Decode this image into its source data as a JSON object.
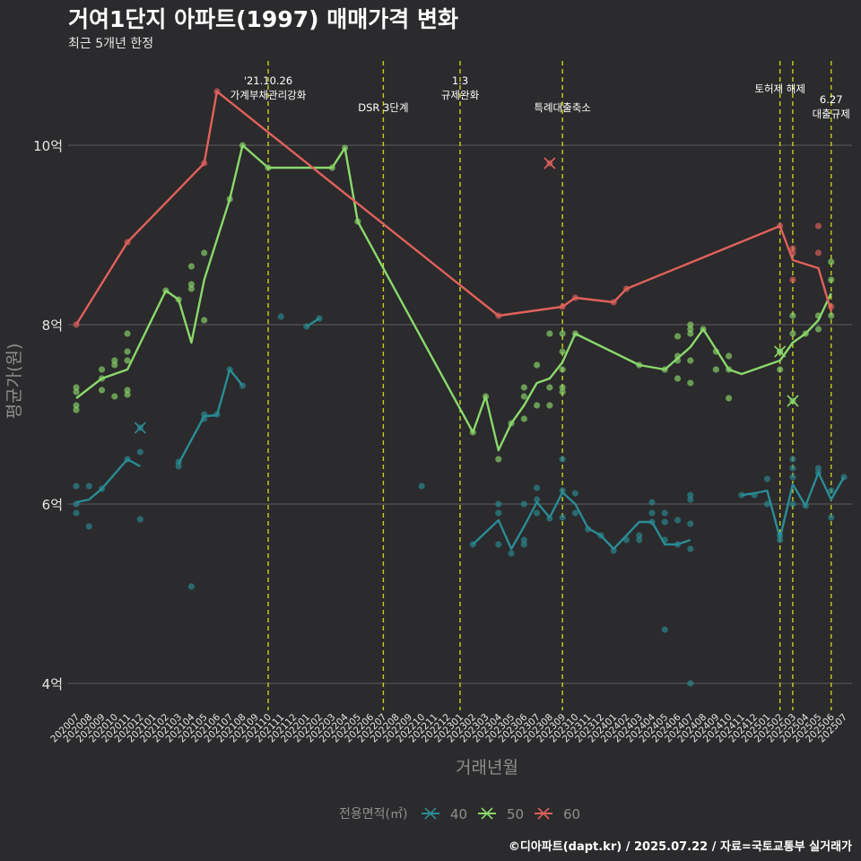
{
  "title": "거여1단지 아파트(1997) 매매가격 변화",
  "subtitle": "최근 5개년 한정",
  "caption": "©디아파트(dapt.kr) / 2025.07.22 / 자료=국토교통부 실거래가",
  "colors": {
    "background": "#2b2a2c",
    "grid": "#5e5d60",
    "vline": "#c8d21e",
    "text": "#e6e6e6",
    "axis_title": "#8f8f8f"
  },
  "chart_data": {
    "type": "line",
    "xlabel": "거래년월",
    "ylabel": "평균가(원)",
    "x_categories": [
      "202007",
      "202008",
      "202009",
      "202010",
      "202011",
      "202012",
      "202101",
      "202102",
      "202103",
      "202104",
      "202105",
      "202106",
      "202107",
      "202108",
      "202109",
      "202110",
      "202111",
      "202112",
      "202201",
      "202202",
      "202203",
      "202204",
      "202205",
      "202206",
      "202207",
      "202208",
      "202209",
      "202210",
      "202211",
      "202212",
      "202301",
      "202302",
      "202303",
      "202304",
      "202305",
      "202306",
      "202307",
      "202308",
      "202309",
      "202310",
      "202311",
      "202312",
      "202401",
      "202402",
      "202403",
      "202404",
      "202405",
      "202406",
      "202407",
      "202408",
      "202409",
      "202410",
      "202411",
      "202412",
      "202501",
      "202502",
      "202503",
      "202504",
      "202505",
      "202506",
      "202507"
    ],
    "y_ticks": [
      4,
      6,
      8,
      10
    ],
    "y_tick_labels": [
      "4억",
      "6억",
      "8억",
      "10억"
    ],
    "ylim": [
      3.7,
      11.0
    ],
    "grid": true,
    "legend": {
      "position": "bottom",
      "title": "전용면적(㎡)"
    },
    "series": [
      {
        "name": "40",
        "color": "#2a8c95",
        "line": [
          [
            "202007",
            6.02
          ],
          [
            "202008",
            6.05
          ],
          [
            "202009",
            6.17
          ],
          [
            "202011",
            6.5
          ],
          [
            "202012",
            6.42
          ],
          null,
          [
            "202103",
            6.45
          ],
          [
            "202105",
            6.98
          ],
          [
            "202106",
            6.99
          ],
          [
            "202107",
            7.5
          ],
          [
            "202108",
            7.32
          ],
          null,
          [
            "202201",
            7.98
          ],
          [
            "202202",
            8.07
          ],
          null,
          [
            "202302",
            5.55
          ],
          [
            "202304",
            5.82
          ],
          [
            "202305",
            5.5
          ],
          [
            "202306",
            5.75
          ],
          [
            "202307",
            6.02
          ],
          [
            "202308",
            5.85
          ],
          [
            "202309",
            6.13
          ],
          [
            "202310",
            6.0
          ],
          [
            "202311",
            5.73
          ],
          [
            "202312",
            5.65
          ],
          [
            "202401",
            5.5
          ],
          [
            "202402",
            5.65
          ],
          [
            "202403",
            5.8
          ],
          [
            "202404",
            5.8
          ],
          [
            "202405",
            5.55
          ],
          [
            "202406",
            5.55
          ],
          [
            "202407",
            5.6
          ],
          null,
          [
            "202411",
            6.1
          ],
          [
            "202412",
            6.12
          ],
          [
            "202501",
            6.15
          ],
          [
            "202502",
            5.62
          ],
          [
            "202503",
            6.22
          ],
          [
            "202504",
            5.98
          ],
          [
            "202505",
            6.35
          ],
          [
            "202506",
            6.05
          ],
          [
            "202507",
            6.3
          ]
        ],
        "points": [
          [
            "202007",
            5.9
          ],
          [
            "202007",
            6.0
          ],
          [
            "202007",
            6.2
          ],
          [
            "202008",
            5.75
          ],
          [
            "202008",
            6.2
          ],
          [
            "202009",
            6.17
          ],
          [
            "202011",
            6.5
          ],
          [
            "202012",
            6.58
          ],
          [
            "202012",
            5.83
          ],
          [
            "202103",
            6.42
          ],
          [
            "202103",
            6.47
          ],
          [
            "202104",
            5.08
          ],
          [
            "202105",
            6.95
          ],
          [
            "202105",
            7.0
          ],
          [
            "202106",
            7.0
          ],
          [
            "202107",
            7.5
          ],
          [
            "202108",
            7.32
          ],
          [
            "202111",
            8.09
          ],
          [
            "202201",
            7.98
          ],
          [
            "202202",
            8.07
          ],
          [
            "202210",
            6.2
          ],
          [
            "202302",
            5.55
          ],
          [
            "202304",
            5.55
          ],
          [
            "202304",
            5.9
          ],
          [
            "202304",
            6.0
          ],
          [
            "202305",
            5.45
          ],
          [
            "202306",
            5.55
          ],
          [
            "202306",
            5.6
          ],
          [
            "202306",
            6.0
          ],
          [
            "202307",
            5.9
          ],
          [
            "202307",
            6.05
          ],
          [
            "202307",
            6.18
          ],
          [
            "202308",
            5.84
          ],
          [
            "202309",
            5.85
          ],
          [
            "202309",
            6.15
          ],
          [
            "202309",
            6.5
          ],
          [
            "202310",
            5.9
          ],
          [
            "202310",
            6.12
          ],
          [
            "202311",
            5.72
          ],
          [
            "202312",
            5.65
          ],
          [
            "202401",
            5.48
          ],
          [
            "202402",
            5.6
          ],
          [
            "202403",
            5.65
          ],
          [
            "202403",
            5.6
          ],
          [
            "202404",
            5.9
          ],
          [
            "202404",
            6.02
          ],
          [
            "202404",
            5.8
          ],
          [
            "202405",
            5.6
          ],
          [
            "202405",
            5.8
          ],
          [
            "202405",
            4.6
          ],
          [
            "202405",
            5.9
          ],
          [
            "202406",
            5.55
          ],
          [
            "202406",
            5.82
          ],
          [
            "202407",
            5.5
          ],
          [
            "202407",
            5.78
          ],
          [
            "202407",
            6.05
          ],
          [
            "202407",
            6.1
          ],
          [
            "202407",
            4.0
          ],
          [
            "202411",
            6.1
          ],
          [
            "202412",
            6.1
          ],
          [
            "202501",
            6.28
          ],
          [
            "202501",
            6.0
          ],
          [
            "202502",
            5.6
          ],
          [
            "202502",
            5.65
          ],
          [
            "202503",
            6.3
          ],
          [
            "202503",
            6.4
          ],
          [
            "202503",
            6.5
          ],
          [
            "202503",
            6.0
          ],
          [
            "202504",
            5.98
          ],
          [
            "202505",
            6.4
          ],
          [
            "202505",
            6.35
          ],
          [
            "202506",
            6.15
          ],
          [
            "202506",
            5.85
          ],
          [
            "202507",
            6.3
          ]
        ],
        "cancelled": [
          [
            "202012",
            6.85
          ]
        ]
      },
      {
        "name": "50",
        "color": "#8ad96c",
        "line": [
          [
            "202007",
            7.18
          ],
          [
            "202009",
            7.4
          ],
          [
            "202011",
            7.5
          ],
          [
            "202102",
            8.38
          ],
          [
            "202103",
            8.28
          ],
          [
            "202104",
            7.8
          ],
          [
            "202105",
            8.5
          ],
          [
            "202107",
            9.4
          ],
          [
            "202108",
            10.0
          ],
          [
            "202110",
            9.75
          ],
          [
            "202203",
            9.75
          ],
          [
            "202204",
            9.97
          ],
          [
            "202205",
            9.15
          ],
          [
            "202302",
            6.8
          ],
          [
            "202303",
            7.2
          ],
          [
            "202304",
            6.6
          ],
          [
            "202305",
            6.9
          ],
          [
            "202306",
            7.1
          ],
          [
            "202307",
            7.35
          ],
          [
            "202308",
            7.4
          ],
          [
            "202309",
            7.58
          ],
          [
            "202310",
            7.9
          ],
          [
            "202403",
            7.55
          ],
          [
            "202405",
            7.5
          ],
          [
            "202407",
            7.75
          ],
          [
            "202408",
            7.95
          ],
          [
            "202410",
            7.5
          ],
          [
            "202411",
            7.45
          ],
          [
            "202502",
            7.6
          ],
          [
            "202503",
            7.8
          ],
          [
            "202504",
            7.9
          ],
          [
            "202505",
            8.05
          ],
          [
            "202506",
            8.35
          ]
        ],
        "points": [
          [
            "202007",
            7.05
          ],
          [
            "202007",
            7.1
          ],
          [
            "202007",
            7.25
          ],
          [
            "202007",
            7.3
          ],
          [
            "202009",
            7.27
          ],
          [
            "202009",
            7.4
          ],
          [
            "202009",
            7.5
          ],
          [
            "202010",
            7.2
          ],
          [
            "202010",
            7.55
          ],
          [
            "202010",
            7.6
          ],
          [
            "202011",
            7.22
          ],
          [
            "202011",
            7.27
          ],
          [
            "202011",
            7.6
          ],
          [
            "202011",
            7.7
          ],
          [
            "202011",
            7.9
          ],
          [
            "202102",
            8.38
          ],
          [
            "202103",
            8.28
          ],
          [
            "202104",
            8.4
          ],
          [
            "202104",
            8.45
          ],
          [
            "202104",
            8.65
          ],
          [
            "202105",
            8.05
          ],
          [
            "202105",
            8.8
          ],
          [
            "202107",
            9.4
          ],
          [
            "202108",
            10.0
          ],
          [
            "202110",
            9.75
          ],
          [
            "202203",
            9.75
          ],
          [
            "202204",
            9.97
          ],
          [
            "202205",
            9.15
          ],
          [
            "202302",
            6.8
          ],
          [
            "202303",
            7.2
          ],
          [
            "202304",
            6.5
          ],
          [
            "202305",
            6.9
          ],
          [
            "202306",
            6.95
          ],
          [
            "202306",
            7.2
          ],
          [
            "202306",
            7.3
          ],
          [
            "202307",
            7.1
          ],
          [
            "202307",
            7.55
          ],
          [
            "202308",
            7.1
          ],
          [
            "202308",
            7.3
          ],
          [
            "202308",
            7.9
          ],
          [
            "202309",
            7.25
          ],
          [
            "202309",
            7.3
          ],
          [
            "202309",
            7.5
          ],
          [
            "202309",
            7.7
          ],
          [
            "202309",
            7.9
          ],
          [
            "202310",
            7.9
          ],
          [
            "202403",
            7.55
          ],
          [
            "202405",
            7.5
          ],
          [
            "202406",
            7.4
          ],
          [
            "202406",
            7.6
          ],
          [
            "202406",
            7.65
          ],
          [
            "202406",
            7.87
          ],
          [
            "202407",
            7.35
          ],
          [
            "202407",
            7.6
          ],
          [
            "202407",
            7.9
          ],
          [
            "202407",
            7.95
          ],
          [
            "202407",
            8.0
          ],
          [
            "202408",
            7.95
          ],
          [
            "202409",
            7.5
          ],
          [
            "202409",
            7.7
          ],
          [
            "202410",
            7.65
          ],
          [
            "202410",
            7.5
          ],
          [
            "202410",
            7.18
          ],
          [
            "202502",
            7.5
          ],
          [
            "202502",
            7.7
          ],
          [
            "202503",
            7.9
          ],
          [
            "202503",
            8.1
          ],
          [
            "202504",
            7.9
          ],
          [
            "202505",
            8.1
          ],
          [
            "202505",
            7.95
          ],
          [
            "202506",
            8.5
          ],
          [
            "202506",
            8.7
          ],
          [
            "202506",
            8.1
          ]
        ],
        "cancelled": [
          [
            "202502",
            7.7
          ],
          [
            "202503",
            7.15
          ]
        ]
      },
      {
        "name": "60",
        "color": "#e0615c",
        "line": [
          [
            "202007",
            8.0
          ],
          [
            "202011",
            8.92
          ],
          [
            "202105",
            9.8
          ],
          [
            "202106",
            10.6
          ],
          [
            "202304",
            8.1
          ],
          [
            "202309",
            8.2
          ],
          [
            "202310",
            8.3
          ],
          [
            "202401",
            8.25
          ],
          [
            "202402",
            8.4
          ],
          [
            "202502",
            9.1
          ],
          [
            "202503",
            8.72
          ],
          [
            "202505",
            8.63
          ],
          [
            "202506",
            8.15
          ]
        ],
        "points": [
          [
            "202007",
            8.0
          ],
          [
            "202011",
            8.92
          ],
          [
            "202105",
            9.8
          ],
          [
            "202106",
            10.6
          ],
          [
            "202304",
            8.1
          ],
          [
            "202309",
            8.2
          ],
          [
            "202310",
            8.3
          ],
          [
            "202401",
            8.25
          ],
          [
            "202402",
            8.4
          ],
          [
            "202502",
            9.1
          ],
          [
            "202503",
            8.5
          ],
          [
            "202503",
            8.8
          ],
          [
            "202503",
            8.85
          ],
          [
            "202505",
            9.1
          ],
          [
            "202505",
            8.8
          ],
          [
            "202506",
            8.2
          ]
        ],
        "cancelled": [
          [
            "202308",
            9.8
          ]
        ]
      }
    ],
    "annotations": [
      {
        "month": "202110",
        "lines": [
          "'21.10.26",
          "가계부채관리강화"
        ],
        "row": 0
      },
      {
        "month": "202207",
        "lines": [
          "DSR 3단계"
        ],
        "row": 2
      },
      {
        "month": "202301",
        "lines": [
          "1.3",
          "규제완화"
        ],
        "row": 0
      },
      {
        "month": "202309",
        "lines": [
          "특례대출축소"
        ],
        "row": 2
      },
      {
        "month": "202502",
        "lines": [
          "토허제 해제"
        ],
        "row": 1
      },
      {
        "month": "202503",
        "lines": [],
        "row": 1
      },
      {
        "month": "202506",
        "lines": [
          "6.27",
          "대출규제"
        ],
        "row": 1.7
      }
    ]
  }
}
